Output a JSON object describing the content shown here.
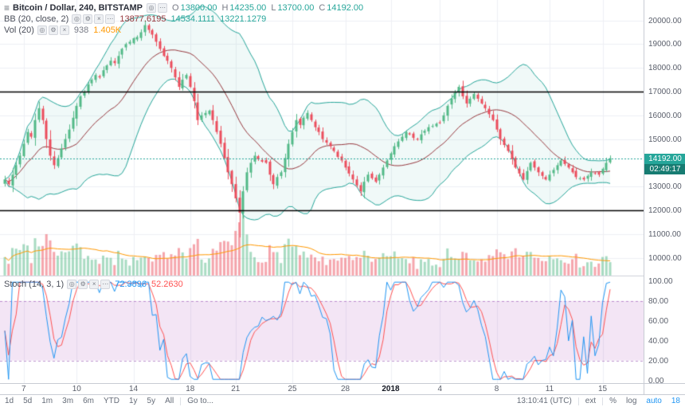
{
  "legend": {
    "symbol": "Bitcoin / Dollar, 240, BITSTAMP",
    "ohlc": [
      {
        "k": "O",
        "v": "13800.00"
      },
      {
        "k": "H",
        "v": "14235.00"
      },
      {
        "k": "L",
        "v": "13700.00"
      },
      {
        "k": "C",
        "v": "14192.00"
      }
    ],
    "bb_label": "BB (20, close, 2)",
    "bb_values": [
      "13877.6195",
      "14534.1111",
      "13221.1279"
    ],
    "vol_label": "Vol (20)",
    "vol_value": "938",
    "vol_ma": "1.405K",
    "stoch_label": "Stoch (14, 3, 1)",
    "stoch_k": "72.3896",
    "stoch_d": "52.2630"
  },
  "price_axis": {
    "current": "14192.00",
    "countdown": "02:49:17"
  },
  "toolbar": {
    "ranges": [
      "1d",
      "5d",
      "1m",
      "3m",
      "6m",
      "YTD",
      "1y",
      "5y",
      "All"
    ],
    "goto": "Go to...",
    "clock": "13:10:41 (UTC)",
    "ext": "ext",
    "percent": "%",
    "log": "log",
    "auto": "auto",
    "badge": "18"
  },
  "chart_data": {
    "type": "candlestick",
    "title": "Bitcoin / Dollar, 240, BITSTAMP",
    "interval_minutes": 240,
    "price_ticks": [
      20000,
      19000,
      18000,
      17000,
      16000,
      15000,
      13000,
      12000,
      11000,
      10000
    ],
    "stoch_ticks": [
      100,
      80,
      60,
      40,
      20,
      0
    ],
    "levels": [
      17000,
      12000
    ],
    "current_price": 14192,
    "stoch_zone": [
      20,
      80
    ],
    "time_labels": [
      {
        "label": "7",
        "index": 5
      },
      {
        "label": "10",
        "index": 19
      },
      {
        "label": "14",
        "index": 34
      },
      {
        "label": "18",
        "index": 49
      },
      {
        "label": "21",
        "index": 61
      },
      {
        "label": "25",
        "index": 76
      },
      {
        "label": "28",
        "index": 90
      },
      {
        "label": "2018",
        "index": 102,
        "bold": true
      },
      {
        "label": "4",
        "index": 115
      },
      {
        "label": "8",
        "index": 130
      },
      {
        "label": "11",
        "index": 144
      },
      {
        "label": "15",
        "index": 158
      }
    ],
    "closes": [
      13300,
      13100,
      13500,
      13900,
      14300,
      14800,
      15300,
      15100,
      15800,
      16300,
      15800,
      15000,
      14300,
      13900,
      14200,
      14600,
      15000,
      15400,
      15900,
      16400,
      16800,
      17000,
      17300,
      17500,
      17700,
      17600,
      17900,
      18100,
      18300,
      18200,
      18500,
      18800,
      19000,
      19100,
      19250,
      19300,
      19500,
      19800,
      19600,
      19400,
      19100,
      18800,
      18500,
      18300,
      18000,
      17600,
      17200,
      17500,
      17700,
      17200,
      16600,
      15800,
      16000,
      16100,
      16200,
      15800,
      15300,
      14800,
      14200,
      13600,
      13100,
      12500,
      11900,
      12800,
      13600,
      14000,
      14300,
      14150,
      14050,
      14000,
      13500,
      13100,
      13400,
      13600,
      14200,
      14800,
      15300,
      15800,
      15600,
      15900,
      16100,
      15800,
      15500,
      15300,
      15000,
      14850,
      14700,
      14500,
      14250,
      14100,
      13800,
      13550,
      13300,
      13050,
      12800,
      13200,
      13500,
      13350,
      13200,
      13500,
      13800,
      14100,
      14400,
      14700,
      14900,
      15100,
      15300,
      15200,
      15050,
      15000,
      15200,
      15350,
      15500,
      15550,
      15650,
      15700,
      16000,
      16400,
      16700,
      16950,
      17200,
      16800,
      16500,
      16700,
      16900,
      16700,
      16500,
      16300,
      16050,
      15800,
      15400,
      15000,
      14750,
      14500,
      14150,
      13800,
      13550,
      13300,
      13650,
      14000,
      13800,
      13600,
      13450,
      13300,
      13500,
      13700,
      13900,
      14100,
      13950,
      13800,
      13600,
      13400,
      13350,
      13300,
      13450,
      13600,
      13550,
      13500,
      13750,
      14000,
      14192
    ],
    "colors": {
      "up": "#53b987",
      "down": "#eb4d5c",
      "bb_band": "#26a69a",
      "bb_fill": "rgba(38,166,154,0.07)",
      "bb_basis": "#97383e",
      "vol_up": "rgba(83,185,135,0.5)",
      "vol_down": "rgba(235,77,92,0.5)",
      "vol_ma": "#ff9800",
      "stoch_k": "#2196f3",
      "stoch_d": "#ff5252",
      "zone_fill": "rgba(156,39,176,0.12)",
      "zone_line": "rgba(142,68,173,0.55)",
      "level": "#000000",
      "accent": "#26a69a",
      "grid": "#eef0f5"
    }
  }
}
